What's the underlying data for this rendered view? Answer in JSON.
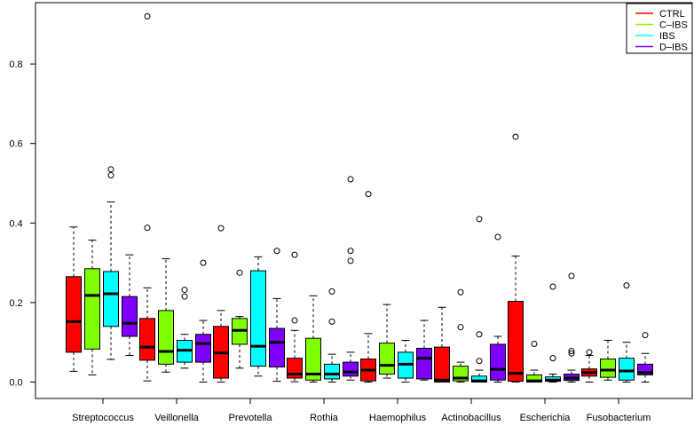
{
  "chart_data": {
    "type": "boxplot",
    "title": "",
    "xlabel": "",
    "ylabel": "",
    "ylim": [
      0,
      0.95
    ],
    "yticks": [
      0.0,
      0.2,
      0.4,
      0.6,
      0.8
    ],
    "ytick_labels": [
      "0.0",
      "0.2",
      "0.4",
      "0.6",
      "0.8"
    ],
    "categories": [
      "Streptococcus",
      "Veillonella",
      "Prevotella",
      "Rothia",
      "Haemophilus",
      "Actinobacillus",
      "Escherichia",
      "Fusobacterium"
    ],
    "legend": {
      "position": "top-right",
      "entries": [
        {
          "name": "CTRL",
          "color": "#ff0000"
        },
        {
          "name": "C–IBS",
          "color": "#80ff00"
        },
        {
          "name": "IBS",
          "color": "#00ffff"
        },
        {
          "name": "D–IBS",
          "color": "#8000ff"
        }
      ]
    },
    "series": [
      {
        "name": "CTRL",
        "color": "#ff0000",
        "boxes": [
          {
            "min": 0.027,
            "q1": 0.075,
            "median": 0.152,
            "q3": 0.265,
            "max": 0.39,
            "outliers": []
          },
          {
            "min": 0.003,
            "q1": 0.055,
            "median": 0.088,
            "q3": 0.16,
            "max": 0.237,
            "outliers": [
              0.388,
              0.92
            ]
          },
          {
            "min": 0.0,
            "q1": 0.01,
            "median": 0.073,
            "q3": 0.14,
            "max": 0.18,
            "outliers": [
              0.387
            ]
          },
          {
            "min": 0.001,
            "q1": 0.01,
            "median": 0.02,
            "q3": 0.06,
            "max": 0.13,
            "outliers": [
              0.155,
              0.32
            ]
          },
          {
            "min": 0.0,
            "q1": 0.003,
            "median": 0.03,
            "q3": 0.058,
            "max": 0.122,
            "outliers": [
              0.473
            ]
          },
          {
            "min": 0.0,
            "q1": 0.0,
            "median": 0.005,
            "q3": 0.088,
            "max": 0.188,
            "outliers": []
          },
          {
            "min": 0.0,
            "q1": 0.002,
            "median": 0.022,
            "q3": 0.203,
            "max": 0.317,
            "outliers": [
              0.617
            ]
          },
          {
            "min": 0.0,
            "q1": 0.015,
            "median": 0.024,
            "q3": 0.033,
            "max": 0.067,
            "outliers": [
              0.075
            ]
          }
        ]
      },
      {
        "name": "C–IBS",
        "color": "#80ff00",
        "boxes": [
          {
            "min": 0.018,
            "q1": 0.083,
            "median": 0.218,
            "q3": 0.285,
            "max": 0.357,
            "outliers": []
          },
          {
            "min": 0.025,
            "q1": 0.045,
            "median": 0.077,
            "q3": 0.18,
            "max": 0.31,
            "outliers": []
          },
          {
            "min": 0.035,
            "q1": 0.095,
            "median": 0.13,
            "q3": 0.16,
            "max": 0.165,
            "outliers": [
              0.275
            ]
          },
          {
            "min": 0.0,
            "q1": 0.005,
            "median": 0.02,
            "q3": 0.11,
            "max": 0.217,
            "outliers": []
          },
          {
            "min": 0.01,
            "q1": 0.02,
            "median": 0.042,
            "q3": 0.098,
            "max": 0.195,
            "outliers": []
          },
          {
            "min": 0.0,
            "q1": 0.003,
            "median": 0.01,
            "q3": 0.04,
            "max": 0.05,
            "outliers": [
              0.138,
              0.226
            ]
          },
          {
            "min": 0.0,
            "q1": 0.0,
            "median": 0.003,
            "q3": 0.018,
            "max": 0.03,
            "outliers": [
              0.096
            ]
          },
          {
            "min": 0.005,
            "q1": 0.012,
            "median": 0.03,
            "q3": 0.058,
            "max": 0.105,
            "outliers": []
          }
        ]
      },
      {
        "name": "IBS",
        "color": "#00ffff",
        "boxes": [
          {
            "min": 0.057,
            "q1": 0.14,
            "median": 0.222,
            "q3": 0.278,
            "max": 0.453,
            "outliers": [
              0.52,
              0.535
            ]
          },
          {
            "min": 0.035,
            "q1": 0.05,
            "median": 0.08,
            "q3": 0.105,
            "max": 0.12,
            "outliers": [
              0.215,
              0.232
            ]
          },
          {
            "min": 0.015,
            "q1": 0.04,
            "median": 0.09,
            "q3": 0.28,
            "max": 0.315,
            "outliers": []
          },
          {
            "min": 0.0,
            "q1": 0.008,
            "median": 0.02,
            "q3": 0.045,
            "max": 0.07,
            "outliers": [
              0.152,
              0.228
            ]
          },
          {
            "min": 0.0,
            "q1": 0.01,
            "median": 0.045,
            "q3": 0.075,
            "max": 0.105,
            "outliers": []
          },
          {
            "min": 0.0,
            "q1": 0.0,
            "median": 0.003,
            "q3": 0.015,
            "max": 0.03,
            "outliers": [
              0.053,
              0.12,
              0.41
            ]
          },
          {
            "min": 0.0,
            "q1": 0.002,
            "median": 0.005,
            "q3": 0.013,
            "max": 0.02,
            "outliers": [
              0.06,
              0.24
            ]
          },
          {
            "min": 0.0,
            "q1": 0.005,
            "median": 0.028,
            "q3": 0.06,
            "max": 0.1,
            "outliers": [
              0.243
            ]
          }
        ]
      },
      {
        "name": "D–IBS",
        "color": "#8000ff",
        "boxes": [
          {
            "min": 0.067,
            "q1": 0.115,
            "median": 0.148,
            "q3": 0.215,
            "max": 0.32,
            "outliers": []
          },
          {
            "min": 0.0,
            "q1": 0.05,
            "median": 0.097,
            "q3": 0.12,
            "max": 0.155,
            "outliers": [
              0.3
            ]
          },
          {
            "min": 0.002,
            "q1": 0.038,
            "median": 0.1,
            "q3": 0.135,
            "max": 0.21,
            "outliers": [
              0.33
            ]
          },
          {
            "min": 0.005,
            "q1": 0.015,
            "median": 0.025,
            "q3": 0.05,
            "max": 0.075,
            "outliers": [
              0.305,
              0.33,
              0.51
            ]
          },
          {
            "min": 0.005,
            "q1": 0.008,
            "median": 0.06,
            "q3": 0.085,
            "max": 0.155,
            "outliers": []
          },
          {
            "min": 0.0,
            "q1": 0.005,
            "median": 0.032,
            "q3": 0.095,
            "max": 0.115,
            "outliers": [
              0.365
            ]
          },
          {
            "min": 0.0,
            "q1": 0.004,
            "median": 0.01,
            "q3": 0.02,
            "max": 0.03,
            "outliers": [
              0.072,
              0.078,
              0.267
            ]
          },
          {
            "min": 0.0,
            "q1": 0.018,
            "median": 0.024,
            "q3": 0.045,
            "max": 0.072,
            "outliers": [
              0.118
            ]
          }
        ]
      }
    ]
  }
}
